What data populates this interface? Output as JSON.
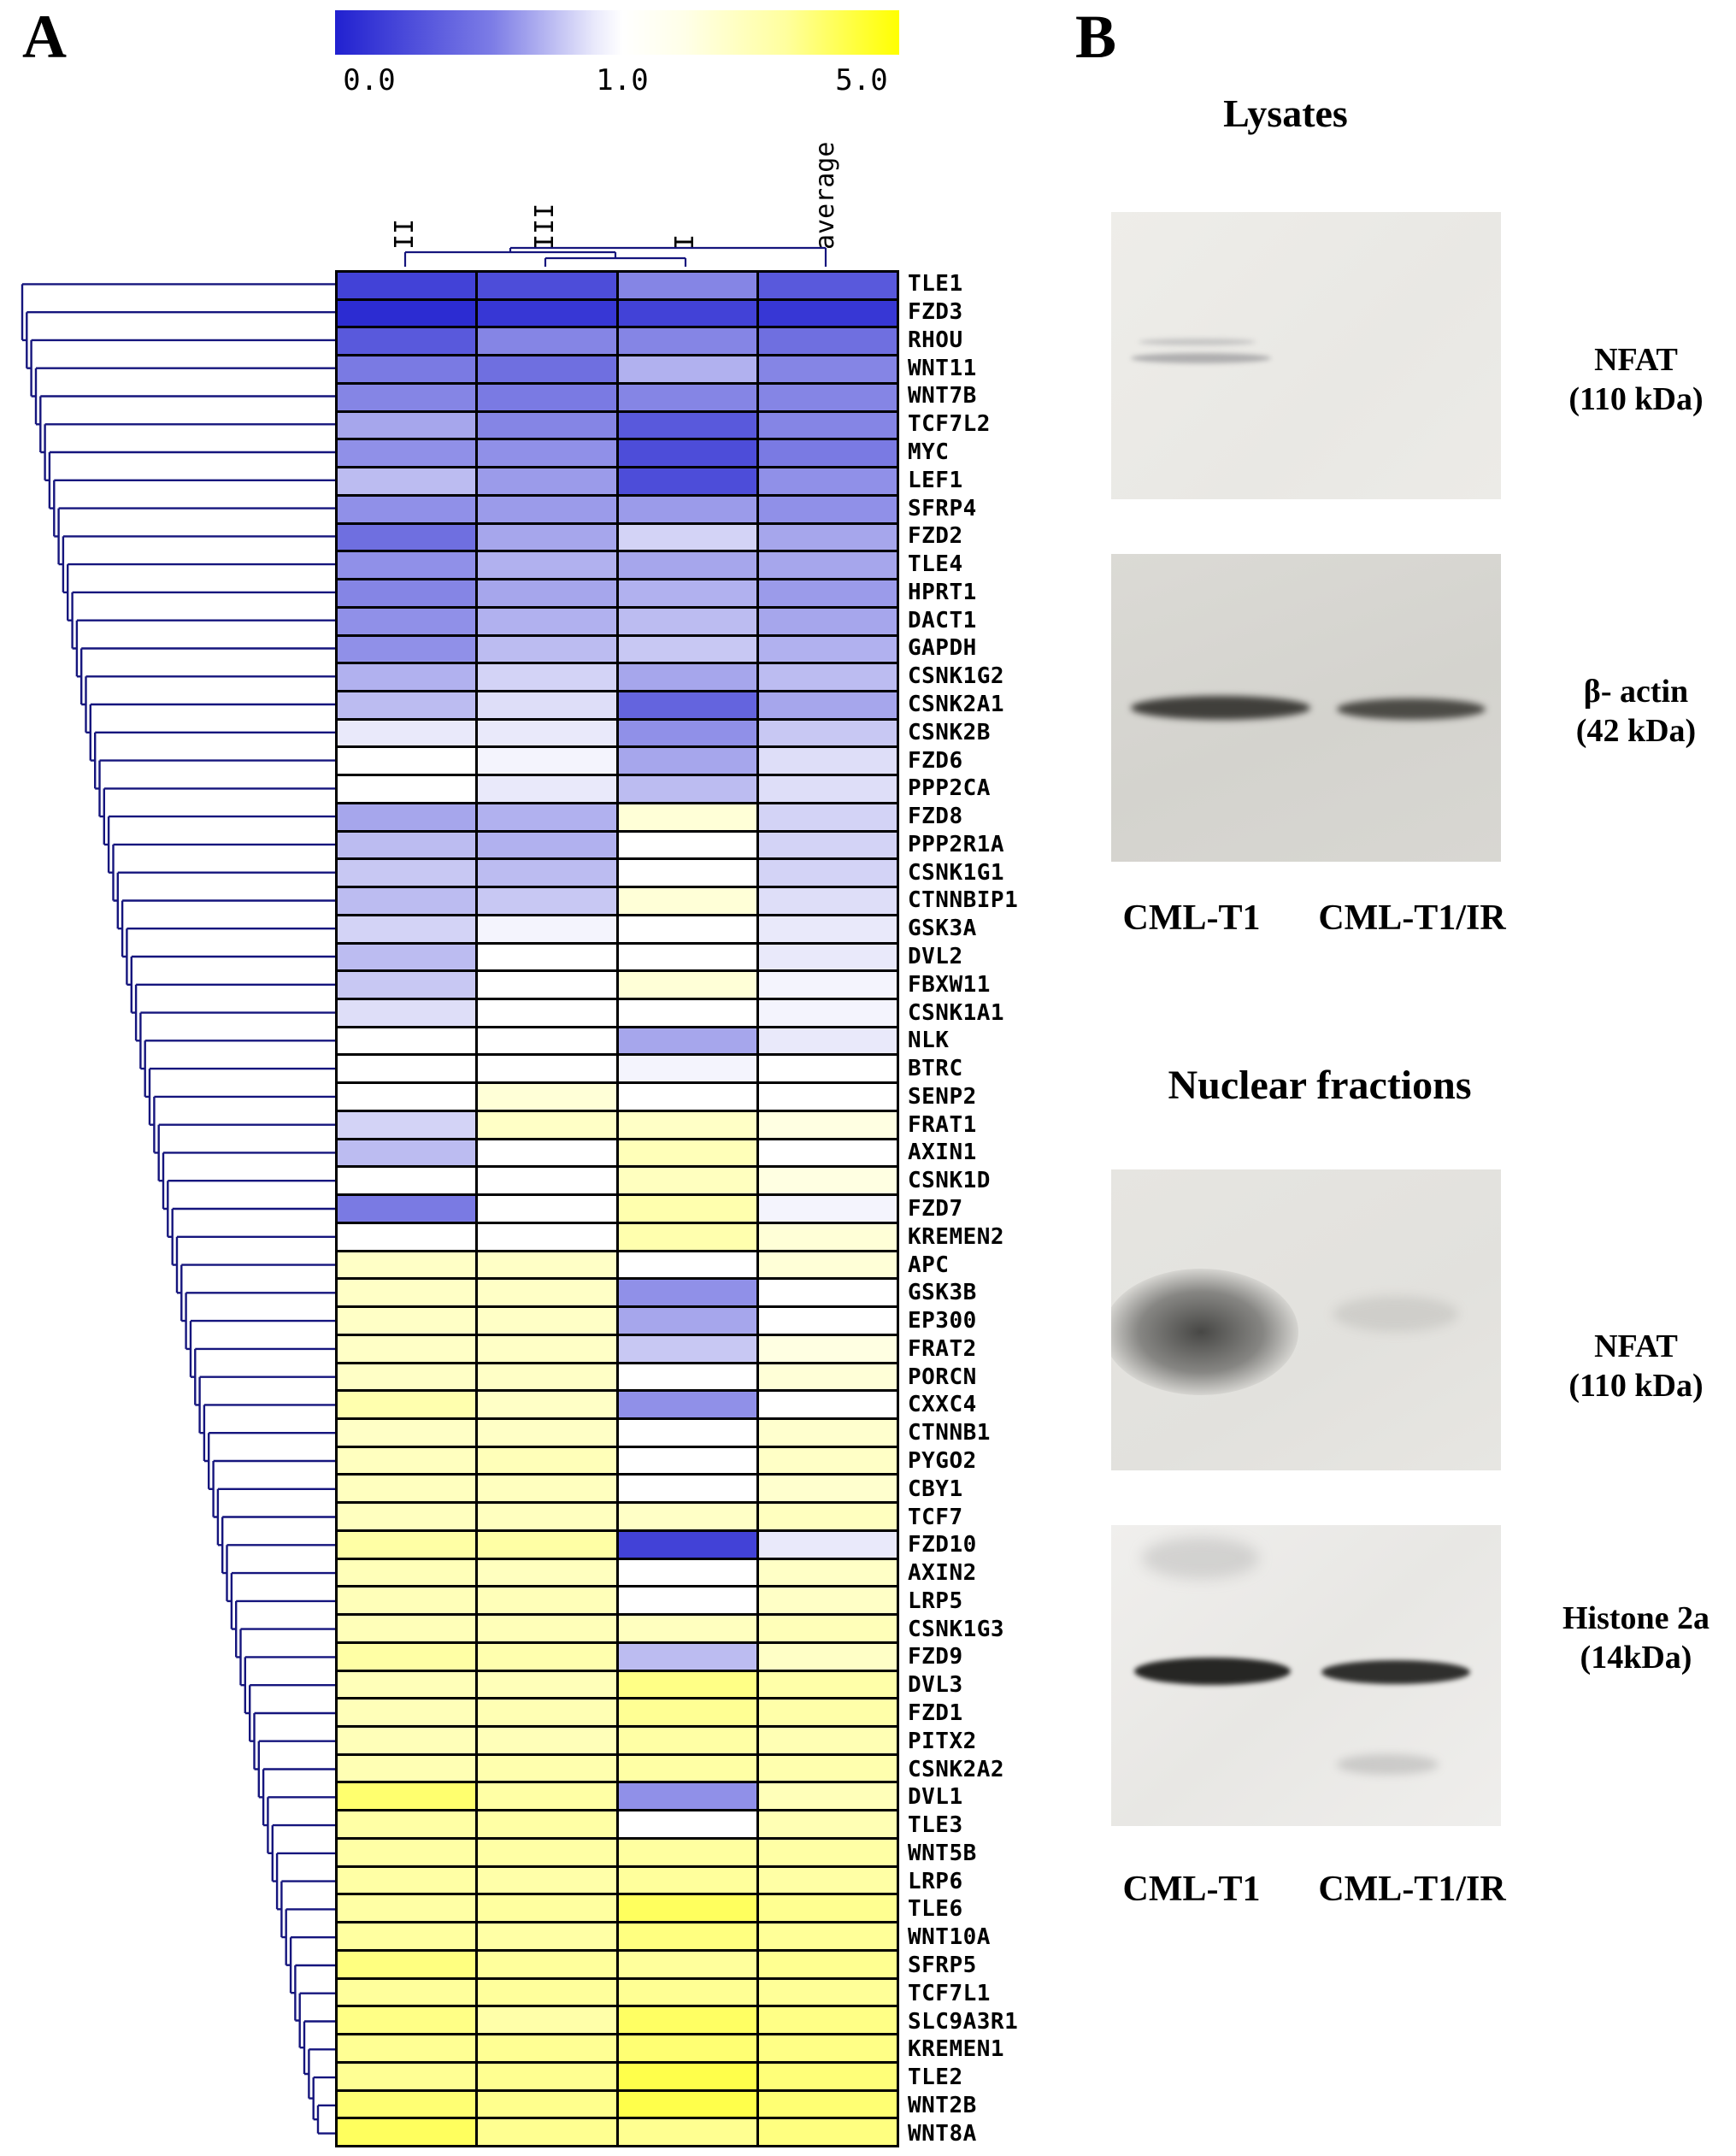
{
  "figure": {
    "panel_a_label": "A",
    "panel_b_label": "B"
  },
  "panel_a": {
    "colorbar": {
      "tick_min": "0.0",
      "tick_mid": "1.0",
      "tick_max": "5.0",
      "color_min": "#2121d0",
      "color_mid": "#ffffff",
      "color_max": "#ffff00"
    },
    "chart_data": {
      "type": "heatmap",
      "columns": [
        "II",
        "III",
        "I",
        "average"
      ],
      "value_scale": {
        "min": 0.0,
        "mid": 1.0,
        "max": 5.0
      },
      "rows": [
        {
          "gene": "TLE1",
          "values": [
            0.15,
            0.2,
            0.45,
            0.25
          ]
        },
        {
          "gene": "FZD3",
          "values": [
            0.05,
            0.1,
            0.15,
            0.1
          ]
        },
        {
          "gene": "RHOU",
          "values": [
            0.25,
            0.45,
            0.45,
            0.35
          ]
        },
        {
          "gene": "WNT11",
          "values": [
            0.4,
            0.35,
            0.65,
            0.45
          ]
        },
        {
          "gene": "WNT7B",
          "values": [
            0.45,
            0.4,
            0.45,
            0.45
          ]
        },
        {
          "gene": "TCF7L2",
          "values": [
            0.6,
            0.45,
            0.25,
            0.45
          ]
        },
        {
          "gene": "MYC",
          "values": [
            0.5,
            0.5,
            0.2,
            0.4
          ]
        },
        {
          "gene": "LEF1",
          "values": [
            0.7,
            0.55,
            0.2,
            0.5
          ]
        },
        {
          "gene": "SFRP4",
          "values": [
            0.5,
            0.55,
            0.55,
            0.5
          ]
        },
        {
          "gene": "FZD2",
          "values": [
            0.35,
            0.6,
            0.8,
            0.6
          ]
        },
        {
          "gene": "TLE4",
          "values": [
            0.5,
            0.65,
            0.6,
            0.6
          ]
        },
        {
          "gene": "HPRT1",
          "values": [
            0.45,
            0.6,
            0.65,
            0.55
          ]
        },
        {
          "gene": "DACT1",
          "values": [
            0.5,
            0.65,
            0.7,
            0.6
          ]
        },
        {
          "gene": "GAPDH",
          "values": [
            0.5,
            0.7,
            0.75,
            0.65
          ]
        },
        {
          "gene": "CSNK1G2",
          "values": [
            0.65,
            0.8,
            0.6,
            0.7
          ]
        },
        {
          "gene": "CSNK2A1",
          "values": [
            0.7,
            0.85,
            0.3,
            0.6
          ]
        },
        {
          "gene": "CSNK2B",
          "values": [
            0.9,
            0.9,
            0.5,
            0.75
          ]
        },
        {
          "gene": "FZD6",
          "values": [
            1.0,
            0.95,
            0.6,
            0.85
          ]
        },
        {
          "gene": "PPP2CA",
          "values": [
            1.0,
            0.9,
            0.7,
            0.85
          ]
        },
        {
          "gene": "FZD8",
          "values": [
            0.6,
            0.65,
            1.1,
            0.8
          ]
        },
        {
          "gene": "PPP2R1A",
          "values": [
            0.7,
            0.65,
            1.0,
            0.8
          ]
        },
        {
          "gene": "CSNK1G1",
          "values": [
            0.75,
            0.7,
            1.0,
            0.8
          ]
        },
        {
          "gene": "CTNNBIP1",
          "values": [
            0.7,
            0.75,
            1.1,
            0.85
          ]
        },
        {
          "gene": "GSK3A",
          "values": [
            0.8,
            0.95,
            1.0,
            0.9
          ]
        },
        {
          "gene": "DVL2",
          "values": [
            0.7,
            1.0,
            1.0,
            0.9
          ]
        },
        {
          "gene": "FBXW11",
          "values": [
            0.75,
            1.0,
            1.1,
            0.95
          ]
        },
        {
          "gene": "CSNK1A1",
          "values": [
            0.85,
            1.0,
            1.0,
            0.95
          ]
        },
        {
          "gene": "NLK",
          "values": [
            1.0,
            1.0,
            0.6,
            0.9
          ]
        },
        {
          "gene": "BTRC",
          "values": [
            1.0,
            1.0,
            0.95,
            1.0
          ]
        },
        {
          "gene": "SENP2",
          "values": [
            1.0,
            1.1,
            1.0,
            1.0
          ]
        },
        {
          "gene": "FRAT1",
          "values": [
            0.8,
            1.2,
            1.2,
            1.05
          ]
        },
        {
          "gene": "AXIN1",
          "values": [
            0.7,
            1.0,
            1.3,
            1.0
          ]
        },
        {
          "gene": "CSNK1D",
          "values": [
            1.0,
            1.0,
            1.25,
            1.05
          ]
        },
        {
          "gene": "FZD7",
          "values": [
            0.4,
            1.0,
            1.4,
            0.95
          ]
        },
        {
          "gene": "KREMEN2",
          "values": [
            1.0,
            1.0,
            1.4,
            1.1
          ]
        },
        {
          "gene": "APC",
          "values": [
            1.2,
            1.2,
            1.0,
            1.1
          ]
        },
        {
          "gene": "GSK3B",
          "values": [
            1.2,
            1.2,
            0.5,
            1.0
          ]
        },
        {
          "gene": "EP300",
          "values": [
            1.2,
            1.2,
            0.6,
            1.0
          ]
        },
        {
          "gene": "FRAT2",
          "values": [
            1.2,
            1.2,
            0.75,
            1.05
          ]
        },
        {
          "gene": "PORCN",
          "values": [
            1.2,
            1.2,
            1.0,
            1.1
          ]
        },
        {
          "gene": "CXXC4",
          "values": [
            1.4,
            1.2,
            0.5,
            1.0
          ]
        },
        {
          "gene": "CTNNB1",
          "values": [
            1.2,
            1.2,
            1.0,
            1.15
          ]
        },
        {
          "gene": "PYGO2",
          "values": [
            1.25,
            1.3,
            1.0,
            1.2
          ]
        },
        {
          "gene": "CBY1",
          "values": [
            1.25,
            1.25,
            1.0,
            1.15
          ]
        },
        {
          "gene": "TCF7",
          "values": [
            1.25,
            1.25,
            1.2,
            1.25
          ]
        },
        {
          "gene": "FZD10",
          "values": [
            1.5,
            1.5,
            0.15,
            0.9
          ]
        },
        {
          "gene": "AXIN2",
          "values": [
            1.3,
            1.25,
            1.0,
            1.2
          ]
        },
        {
          "gene": "LRP5",
          "values": [
            1.3,
            1.3,
            1.0,
            1.2
          ]
        },
        {
          "gene": "CSNK1G3",
          "values": [
            1.3,
            1.3,
            1.25,
            1.3
          ]
        },
        {
          "gene": "FZD9",
          "values": [
            1.5,
            1.4,
            0.7,
            1.2
          ]
        },
        {
          "gene": "DVL3",
          "values": [
            1.3,
            1.3,
            1.9,
            1.45
          ]
        },
        {
          "gene": "FZD1",
          "values": [
            1.3,
            1.35,
            1.7,
            1.45
          ]
        },
        {
          "gene": "PITX2",
          "values": [
            1.3,
            1.3,
            1.5,
            1.35
          ]
        },
        {
          "gene": "CSNK2A2",
          "values": [
            1.35,
            1.4,
            1.5,
            1.4
          ]
        },
        {
          "gene": "DVL1",
          "values": [
            2.3,
            1.5,
            0.5,
            1.3
          ]
        },
        {
          "gene": "TLE3",
          "values": [
            1.5,
            1.5,
            1.0,
            1.35
          ]
        },
        {
          "gene": "WNT5B",
          "values": [
            1.5,
            1.5,
            1.55,
            1.5
          ]
        },
        {
          "gene": "LRP6",
          "values": [
            1.5,
            1.45,
            1.6,
            1.5
          ]
        },
        {
          "gene": "TLE6",
          "values": [
            1.5,
            1.55,
            2.6,
            1.75
          ]
        },
        {
          "gene": "WNT10A",
          "values": [
            1.55,
            1.5,
            2.0,
            1.65
          ]
        },
        {
          "gene": "SFRP5",
          "values": [
            2.0,
            1.6,
            1.6,
            1.75
          ]
        },
        {
          "gene": "TCF7L1",
          "values": [
            1.6,
            1.6,
            1.7,
            1.65
          ]
        },
        {
          "gene": "SLC9A3R1",
          "values": [
            1.9,
            1.45,
            2.5,
            1.9
          ]
        },
        {
          "gene": "KREMEN1",
          "values": [
            1.7,
            1.7,
            2.2,
            1.9
          ]
        },
        {
          "gene": "TLE2",
          "values": [
            1.7,
            1.75,
            3.0,
            2.1
          ]
        },
        {
          "gene": "WNT2B",
          "values": [
            2.2,
            1.8,
            3.0,
            2.2
          ]
        },
        {
          "gene": "WNT8A",
          "values": [
            2.6,
            1.75,
            1.75,
            2.0
          ]
        }
      ]
    }
  },
  "panel_b": {
    "sections": [
      {
        "title": "Lysates",
        "blots": [
          {
            "name": "NFAT",
            "size": "(110 kDa)"
          },
          {
            "name": "β- actin",
            "size": "(42 kDa)"
          }
        ],
        "lane_labels": [
          "CML-T1",
          "CML-T1/IR"
        ]
      },
      {
        "title": "Nuclear fractions",
        "blots": [
          {
            "name": "NFAT",
            "size": "(110 kDa)"
          },
          {
            "name": "Histone 2a",
            "size": "(14kDa)"
          }
        ],
        "lane_labels": [
          "CML-T1",
          "CML-T1/IR"
        ]
      }
    ]
  }
}
